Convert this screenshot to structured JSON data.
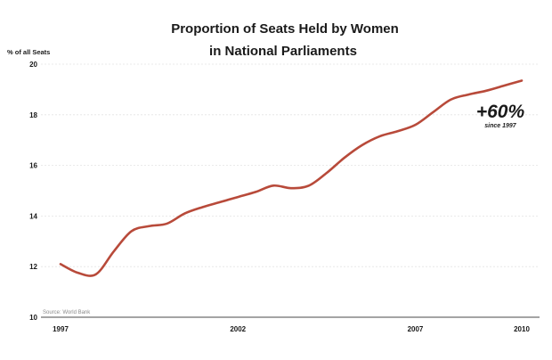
{
  "chart_data": {
    "type": "line",
    "title_line1": "Proportion of Seats Held by Women",
    "title_line2": "in National Parliaments",
    "ylabel": "% of all Seats",
    "xlabel": "",
    "ylim": [
      10,
      20
    ],
    "xlim": [
      1997,
      2010
    ],
    "y_ticks": [
      10,
      12,
      14,
      16,
      18,
      20
    ],
    "x_ticks": [
      1997,
      2002,
      2007,
      2010
    ],
    "grid": true,
    "series": [
      {
        "color": "#b84a3a",
        "x": [
          1997,
          1997.5,
          1998,
          1998.5,
          1999,
          1999.5,
          2000,
          2000.5,
          2001,
          2001.5,
          2002,
          2002.5,
          2003,
          2003.5,
          2004,
          2004.5,
          2005,
          2005.5,
          2006,
          2006.5,
          2007,
          2007.5,
          2008,
          2008.5,
          2009,
          2009.5,
          2010
        ],
        "y": [
          12.1,
          11.75,
          11.7,
          12.6,
          13.4,
          13.6,
          13.7,
          14.1,
          14.35,
          14.55,
          14.75,
          14.95,
          15.2,
          15.1,
          15.2,
          15.7,
          16.3,
          16.8,
          17.15,
          17.35,
          17.6,
          18.1,
          18.6,
          18.8,
          18.95,
          19.15,
          19.35
        ]
      }
    ],
    "annotation": {
      "big": "+60%",
      "small": "since 1997"
    },
    "source": "Source: World Bank"
  }
}
